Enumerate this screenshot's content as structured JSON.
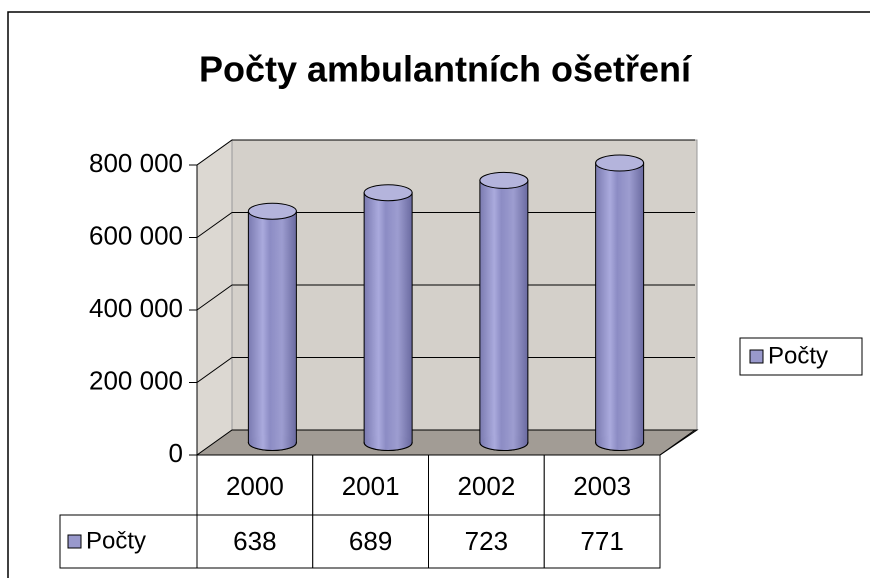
{
  "chart_data": {
    "type": "bar3d",
    "title": "Počty ambulantních ošetření",
    "categories": [
      "2000",
      "2001",
      "2002",
      "2003"
    ],
    "series": [
      {
        "name": "Počty",
        "color": "#9999cc",
        "values": [
          638000,
          689000,
          723000,
          771000
        ],
        "value_labels": [
          "638",
          "689",
          "723",
          "771"
        ]
      }
    ],
    "ylim": [
      0,
      800000
    ],
    "yticks": [
      0,
      {
        "value": 200000,
        "label": "200 000"
      },
      {
        "value": 400000,
        "label": "400 000"
      },
      {
        "value": 600000,
        "label": "600 000"
      },
      {
        "value": 800000,
        "label": "800 000"
      }
    ],
    "grid": true,
    "legend": "right"
  }
}
